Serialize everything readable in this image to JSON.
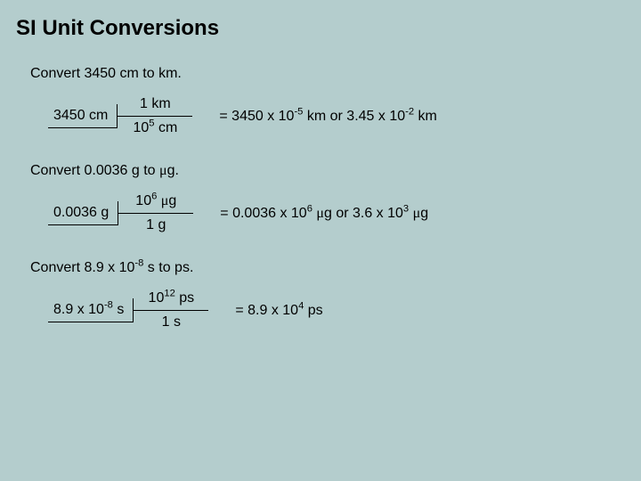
{
  "title": "SI Unit Conversions",
  "background_color": "#b4cdcd",
  "font_family": "Arial",
  "title_fontsize": 24,
  "body_fontsize": 16,
  "conversions": [
    {
      "prompt": "Convert 3450 cm to km.",
      "given": "3450 cm",
      "factor_top": "1 km",
      "factor_bottom_html": "10<sup>5</sup> cm",
      "result_html": "= 3450 x 10<sup>-5</sup> km or 3.45 x 10<sup>-2</sup> km"
    },
    {
      "prompt_html": "Convert 0.0036 g to <span class=\"mu\">μ</span>g.",
      "given": "0.0036 g",
      "factor_top_html": "10<sup>6</sup> <span class=\"mu\">μ</span>g",
      "factor_bottom": "1 g",
      "result_html": "= 0.0036 x 10<sup>6</sup> <span class=\"mu\">μ</span>g or 3.6 x 10<sup>3</sup> <span class=\"mu\">μ</span>g"
    },
    {
      "prompt_html": "Convert 8.9 x 10<sup>-8</sup> s to ps.",
      "given_html": "8.9 x 10<sup>-8</sup> s",
      "factor_top_html": "10<sup>12</sup> ps",
      "factor_bottom": "1 s",
      "result_html": "= 8.9 x 10<sup>4</sup> ps"
    }
  ]
}
